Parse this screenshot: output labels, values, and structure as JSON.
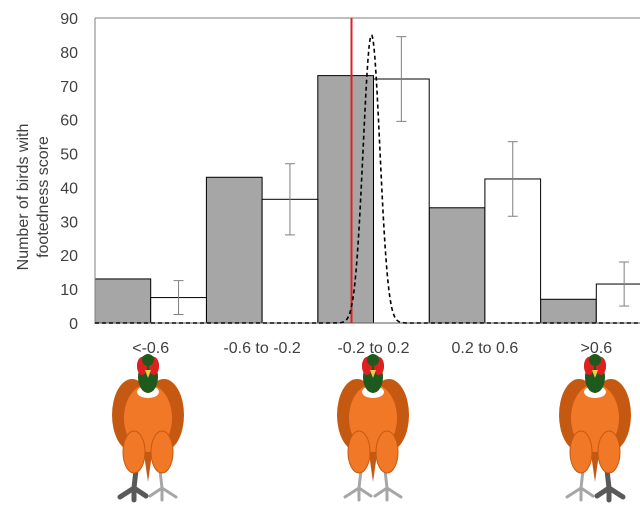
{
  "chart_data": {
    "type": "bar",
    "ylabel": [
      "Number of birds with",
      "footedness score"
    ],
    "xlabel": "",
    "ylim": [
      0,
      90
    ],
    "yticks": [
      0,
      10,
      20,
      30,
      40,
      50,
      60,
      70,
      80,
      90
    ],
    "categories": [
      "<-0.6",
      "-0.6 to -0.2",
      "-0.2 to 0.2",
      "0.2 to 0.6",
      ">0.6"
    ],
    "series": [
      {
        "values": [
          13,
          43,
          73,
          34,
          7
        ],
        "color": "#a6a6a6"
      },
      {
        "values": [
          7.5,
          36.5,
          72,
          42.5,
          11.5
        ],
        "color": "#ffffff",
        "error_low": [
          2.5,
          26,
          59.5,
          31.5,
          5
        ],
        "error_high": [
          12.5,
          47,
          84.5,
          53.5,
          18
        ]
      }
    ],
    "reference_line": {
      "x": 0,
      "color": "#e02020"
    },
    "curve": {
      "style": "dashed",
      "center": 0,
      "peak": 85,
      "sd": 0.03
    },
    "grid": false,
    "legend": "none"
  },
  "illustrations": [
    {
      "name": "pheasant-left-footed"
    },
    {
      "name": "pheasant-ambidextrous"
    },
    {
      "name": "pheasant-right-footed"
    }
  ]
}
